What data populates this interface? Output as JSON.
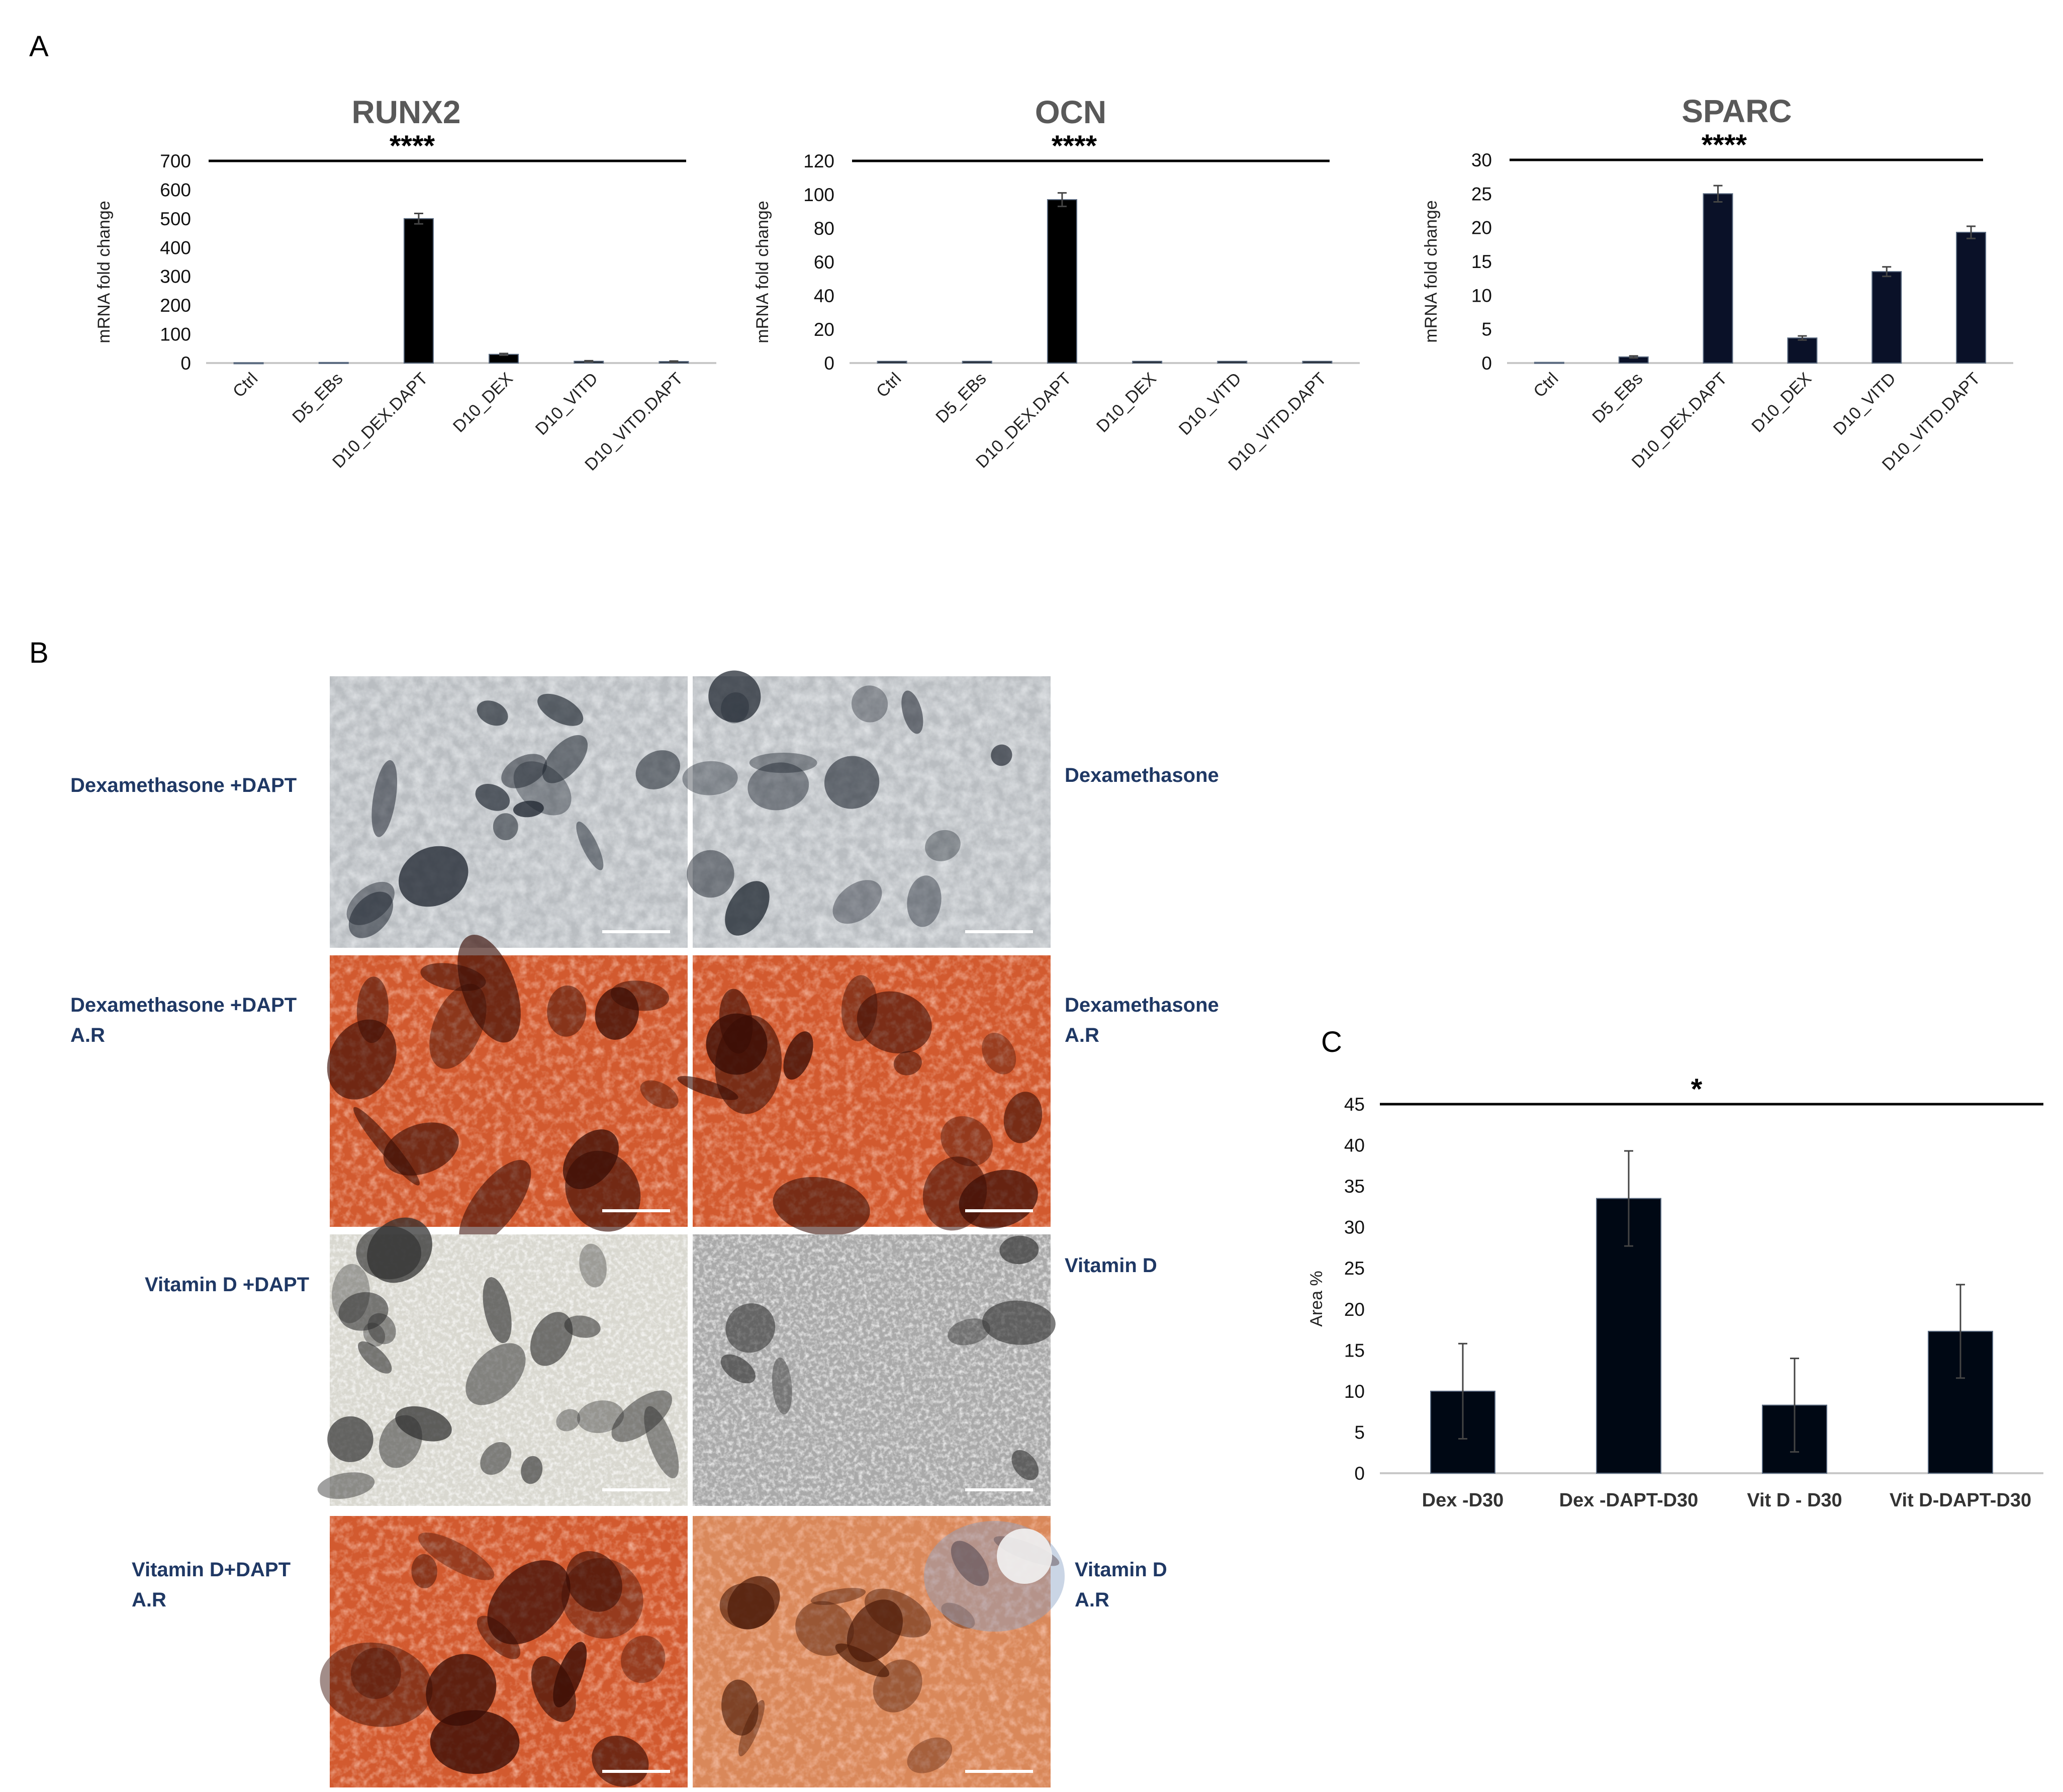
{
  "panel_a_label": "A",
  "panel_b_label": "B",
  "panel_c_label": "C",
  "chart_data": [
    {
      "id": "runx2",
      "type": "bar",
      "title": "RUNX2",
      "significance": "****",
      "ylabel": "mRNA fold change",
      "xlabel": "",
      "ylim": [
        0,
        700
      ],
      "yticks": [
        0,
        100,
        200,
        300,
        400,
        500,
        600,
        700
      ],
      "categories": [
        "Ctrl",
        "D5_EBs",
        "D10_DEX.DAPT",
        "D10_DEX",
        "D10_VITD",
        "D10_VITD.DAPT"
      ],
      "values": [
        1,
        2,
        500,
        30,
        6,
        5
      ],
      "errors": [
        0,
        0,
        18,
        3,
        2,
        2
      ],
      "bar_color": "#000000"
    },
    {
      "id": "ocn",
      "type": "bar",
      "title": "OCN",
      "significance": "****",
      "ylabel": "mRNA fold change",
      "xlabel": "",
      "ylim": [
        0,
        120
      ],
      "yticks": [
        0,
        20,
        40,
        60,
        80,
        100,
        120
      ],
      "categories": [
        "Ctrl",
        "D5_EBs",
        "D10_DEX.DAPT",
        "D10_DEX",
        "D10_VITD",
        "D10_VITD.DAPT"
      ],
      "values": [
        1,
        1,
        97,
        1,
        1,
        1
      ],
      "errors": [
        0,
        0,
        4,
        0,
        0,
        0
      ],
      "bar_color": "#000000"
    },
    {
      "id": "sparc",
      "type": "bar",
      "title": "SPARC",
      "significance": "****",
      "ylabel": "mRNA fold change",
      "xlabel": "",
      "ylim": [
        0,
        30
      ],
      "yticks": [
        0,
        5,
        10,
        15,
        20,
        25,
        30
      ],
      "categories": [
        "Ctrl",
        "D5_EBs",
        "D10_DEX.DAPT",
        "D10_DEX",
        "D10_VITD",
        "D10_VITD.DAPT"
      ],
      "values": [
        0.1,
        0.9,
        25,
        3.7,
        13.5,
        19.3
      ],
      "errors": [
        0,
        0.15,
        1.2,
        0.3,
        0.7,
        0.9
      ],
      "bar_color": "#0a1128"
    },
    {
      "id": "area",
      "type": "bar",
      "title": "",
      "significance": "*",
      "ylabel": "Area %",
      "xlabel": "",
      "ylim": [
        0,
        45
      ],
      "yticks": [
        0,
        5,
        10,
        15,
        20,
        25,
        30,
        35,
        40,
        45
      ],
      "categories": [
        "Dex -D30",
        "Dex -DAPT-D30",
        "Vit D - D30",
        "Vit D-DAPT-D30"
      ],
      "values": [
        10,
        33.5,
        8.3,
        17.3
      ],
      "errors": [
        5.8,
        5.8,
        5.7,
        5.7
      ],
      "bar_color": "#000814"
    }
  ],
  "micrographs": {
    "labels": {
      "dex_dapt": [
        "Dexamethasone +DAPT"
      ],
      "dex": [
        "Dexamethasone"
      ],
      "dex_dapt_ar": [
        "Dexamethasone +DAPT",
        "A.R"
      ],
      "dex_ar": [
        "Dexamethasone",
        "A.R"
      ],
      "vitd_dapt": [
        "Vitamin D +DAPT"
      ],
      "vitd": [
        "Vitamin D"
      ],
      "vitd_dapt_ar": [
        "Vitamin D+DAPT",
        "A.R"
      ],
      "vitd_ar": [
        "Vitamin D",
        "A.R"
      ]
    },
    "colors": {
      "grey_bg": "#b9bdc1",
      "grey_dark": "#1f2630",
      "light_bg": "#d9d8d0",
      "light_dark": "#2f2f2f",
      "phase_bg": "#a9a9a9",
      "red_bg": "#d25a2f",
      "red_dark": "#3a0d05",
      "orange_bg": "#d9885a",
      "blue_tint": "#8aa2c6",
      "label_color": "#1f3864"
    }
  }
}
